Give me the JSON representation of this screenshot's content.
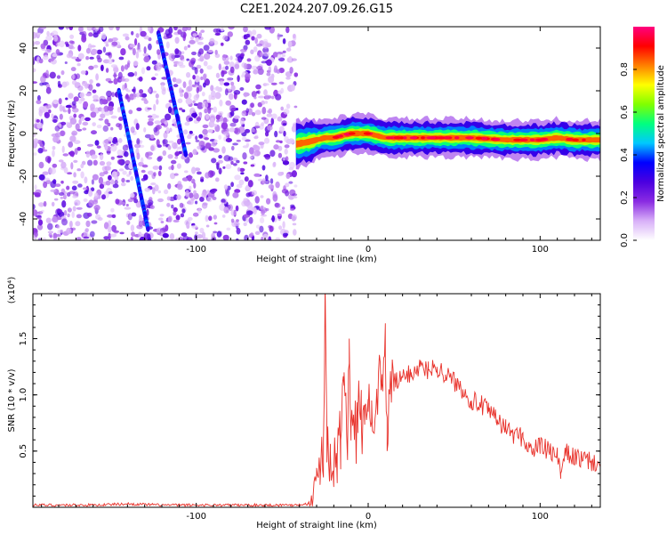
{
  "title": "C2E1.2024.207.09.26.G15",
  "colorbar": {
    "label": "Normalized spectral amplitude",
    "ticks": [
      "0.0",
      "0.2",
      "0.4",
      "0.6",
      "0.8"
    ],
    "tick_values": [
      0.0,
      0.2,
      0.4,
      0.6,
      0.8
    ],
    "range": [
      0,
      1
    ],
    "colors": [
      "#ffffff",
      "#d8b0f8",
      "#8a2be2",
      "#4b00e0",
      "#0000ff",
      "#00c8ff",
      "#00ff80",
      "#80ff00",
      "#ffff00",
      "#ff8000",
      "#ff0000",
      "#ff007f"
    ]
  },
  "chart_data": [
    {
      "type": "heatmap",
      "xlabel": "Height of straight line (km)",
      "ylabel": "Frequency (Hz)",
      "xlim": [
        -195,
        135
      ],
      "ylim": [
        -50,
        50
      ],
      "x_ticks": [
        -100,
        0,
        100
      ],
      "x_tick_labels": [
        "-100",
        "0",
        "100"
      ],
      "y_ticks": [
        -40,
        -20,
        0,
        20,
        40
      ],
      "y_tick_labels": [
        "-40",
        "-20",
        "0",
        "20",
        "40"
      ],
      "noise_region_x": [
        -195,
        -42
      ],
      "features": {
        "streak_1": {
          "x": [
            -145,
            -128
          ],
          "y": [
            20,
            -45
          ]
        },
        "streak_2": {
          "x": [
            -122,
            -106
          ],
          "y": [
            47,
            -10
          ]
        },
        "signal_band": {
          "x": [
            -42,
            -35,
            -30,
            -25,
            -20,
            -15,
            -10,
            -5,
            0,
            5,
            10,
            20,
            40,
            60,
            80,
            90,
            100,
            110,
            120,
            135
          ],
          "y": [
            -5,
            -4,
            -3,
            -2,
            -2,
            -1,
            0,
            0,
            0,
            -1,
            -2,
            -2,
            -2,
            -2,
            -3,
            -3,
            -3,
            -2,
            -3,
            -3
          ]
        }
      }
    },
    {
      "type": "line",
      "xlabel": "Height of straight line (km)",
      "ylabel": "SNR (10 * v/v)",
      "y_multiplier_label": "(x10⁴)",
      "xlim": [
        -195,
        135
      ],
      "ylim": [
        0,
        1.9
      ],
      "x_ticks": [
        -100,
        0,
        100
      ],
      "x_tick_labels": [
        "-100",
        "0",
        "100"
      ],
      "y_ticks": [
        0.5,
        1.0,
        1.5
      ],
      "y_tick_labels": [
        "0.5",
        "1.0",
        "1.5"
      ],
      "series": [
        {
          "color": "#e8312a",
          "x": [
            -195,
            -180,
            -160,
            -140,
            -120,
            -100,
            -80,
            -60,
            -45,
            -35,
            -32,
            -30,
            -28,
            -26,
            -25,
            -24,
            -22,
            -20,
            -18,
            -16,
            -14,
            -12,
            -11,
            -10,
            -8,
            -6,
            -4,
            -2,
            0,
            2,
            5,
            8,
            10,
            11,
            12,
            15,
            20,
            25,
            30,
            35,
            40,
            45,
            50,
            55,
            60,
            65,
            70,
            75,
            80,
            85,
            90,
            95,
            100,
            105,
            110,
            112,
            115,
            120,
            125,
            130,
            135
          ],
          "y": [
            0.02,
            0.02,
            0.02,
            0.03,
            0.02,
            0.02,
            0.02,
            0.02,
            0.02,
            0.03,
            0.1,
            0.35,
            0.2,
            0.6,
            1.9,
            0.4,
            0.5,
            0.3,
            0.45,
            0.6,
            1.2,
            0.45,
            1.5,
            0.7,
            0.6,
            0.8,
            0.75,
            0.9,
            0.85,
            0.95,
            1.0,
            1.1,
            1.35,
            0.5,
            1.05,
            1.1,
            1.15,
            1.2,
            1.25,
            1.22,
            1.25,
            1.18,
            1.12,
            1.05,
            0.95,
            0.92,
            0.85,
            0.78,
            0.7,
            0.65,
            0.62,
            0.5,
            0.55,
            0.5,
            0.45,
            0.3,
            0.48,
            0.45,
            0.42,
            0.4,
            0.38
          ]
        }
      ]
    }
  ]
}
